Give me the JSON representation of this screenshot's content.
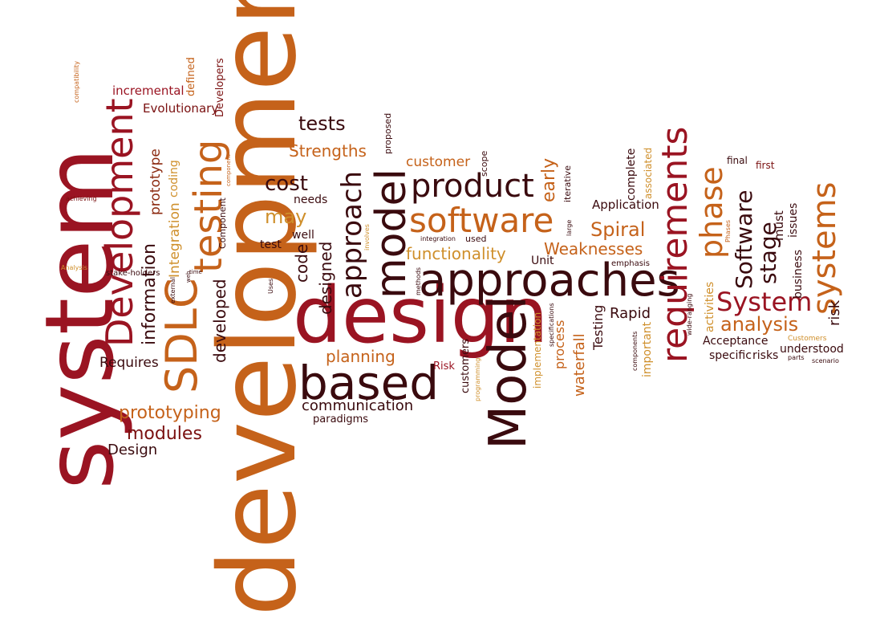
{
  "palette": {
    "red": "#9a1422",
    "dark": "#3a0a0e",
    "orange": "#c5621a",
    "gold": "#cf8f2b",
    "maroon": "#7a1010",
    "brown": "#8c2a10"
  },
  "words": {
    "development": "development",
    "system": "system",
    "design": "design",
    "approaches": "approaches",
    "based": "based",
    "model_cap": "Model",
    "model": "model",
    "requirements": "requirements",
    "software": "software",
    "product": "product",
    "systems": "systems",
    "sdlc": "SDLC",
    "testing": "testing",
    "development_cap": "Development",
    "phase": "phase",
    "system_cap": "System",
    "approach": "approach",
    "software_cap": "Software",
    "stage": "stage",
    "analysis": "analysis",
    "spiral": "Spiral",
    "weaknesses": "Weaknesses",
    "functionality": "functionality",
    "tests": "tests",
    "strengths": "Strengths",
    "cost": "cost",
    "may": "may",
    "customer": "customer",
    "planning": "planning",
    "communication": "communication",
    "prototyping": "prototyping",
    "modules": "modules",
    "design_cap": "Design",
    "requires": "Requires",
    "information": "information",
    "prototype": "prototype",
    "integration": "Integration",
    "coding": "coding",
    "developed": "developed",
    "designed": "designed",
    "code": "code",
    "evolutionary": "Evolutionary",
    "incremental": "incremental",
    "defined": "defined",
    "developers": "Developers",
    "needs": "needs",
    "well": "well",
    "test": "test",
    "paradigms": "paradigms",
    "early": "early",
    "unit": "Unit",
    "application": "Application",
    "rapid": "Rapid",
    "testing_cap": "Testing",
    "waterfall": "waterfall",
    "process": "process",
    "risk_cap": "Risk",
    "customers": "customers",
    "implementation": "implementation",
    "activities": "activities",
    "important": "important",
    "acceptance": "Acceptance",
    "specific": "specific",
    "risks": "risks",
    "understood": "understood",
    "must": "must",
    "issues": "issues",
    "business": "business",
    "risk": "risk",
    "final": "final",
    "first": "first",
    "emphasis": "emphasis",
    "complete": "complete",
    "associated": "associated",
    "iterative": "iterative",
    "scope": "scope",
    "proposed": "proposed",
    "used": "used",
    "integration_small": "integration",
    "large": "large",
    "methods": "methods",
    "programming": "programming",
    "specifications": "specifications",
    "components": "components",
    "wide_ranging": "wide-ranging",
    "customers_cap": "Customers",
    "parts": "parts",
    "scenario": "scenario",
    "phases": "Phases",
    "uses": "Uses",
    "involves": "involves",
    "web": "web",
    "time": "time",
    "external": "external",
    "stake_holders": "stake-holders",
    "analysis_cap": "Analysis",
    "achieving": "achieving",
    "compatibility": "compatibility",
    "component": "Component",
    "component_small": "component"
  }
}
